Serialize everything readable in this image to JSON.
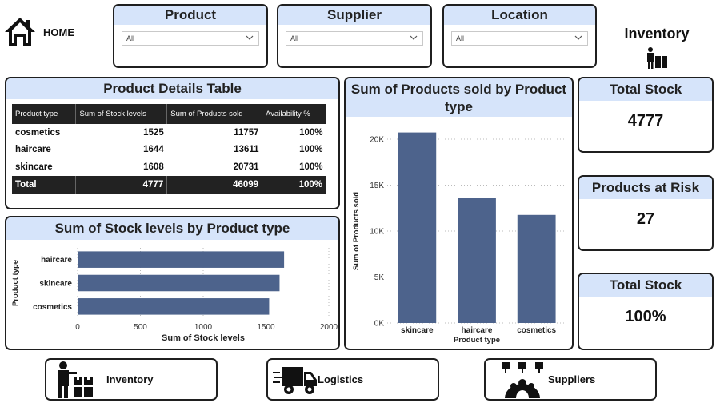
{
  "home": {
    "label": "HOME",
    "icon": "home-icon"
  },
  "slicers": [
    {
      "title": "Product",
      "value": "All"
    },
    {
      "title": "Supplier",
      "value": "All"
    },
    {
      "title": "Location",
      "value": "All"
    }
  ],
  "page_title": "Inventory",
  "details_table": {
    "title": "Product Details Table",
    "columns": [
      "Product type",
      "Sum of Stock levels",
      "Sum of Products sold",
      "Availability %"
    ],
    "rows": [
      [
        "cosmetics",
        "1525",
        "11757",
        "100%"
      ],
      [
        "haircare",
        "1644",
        "13611",
        "100%"
      ],
      [
        "skincare",
        "1608",
        "20731",
        "100%"
      ]
    ],
    "total": [
      "Total",
      "4777",
      "46099",
      "100%"
    ]
  },
  "kpis": [
    {
      "title": "Total Stock",
      "value": "4777"
    },
    {
      "title": "Products at Risk",
      "value": "27"
    },
    {
      "title": "Total Stock",
      "value": "100%"
    }
  ],
  "chart_data": [
    {
      "type": "bar",
      "orientation": "horizontal",
      "title": "Sum of Stock levels by Product type",
      "xlabel": "Sum of Stock levels",
      "ylabel": "Product type",
      "categories": [
        "haircare",
        "skincare",
        "cosmetics"
      ],
      "values": [
        1644,
        1608,
        1525
      ],
      "xlim": [
        0,
        2000
      ],
      "xticks": [
        "0",
        "500",
        "1000",
        "1500",
        "2000"
      ],
      "grid": true,
      "color": "#4d638c"
    },
    {
      "type": "bar",
      "orientation": "vertical",
      "title": "Sum of Products sold by Product type",
      "xlabel": "Product type",
      "ylabel": "Sum of Products sold",
      "categories": [
        "skincare",
        "haircare",
        "cosmetics"
      ],
      "values": [
        20731,
        13611,
        11757
      ],
      "ylim": [
        0,
        20000
      ],
      "yticks": [
        "0K",
        "5K",
        "10K",
        "15K",
        "20K"
      ],
      "grid": true,
      "color": "#4d638c"
    }
  ],
  "nav_buttons": [
    {
      "label": "Inventory",
      "icon": "inventory-worker-icon"
    },
    {
      "label": "Logistics",
      "icon": "delivery-truck-icon"
    },
    {
      "label": "Suppliers",
      "icon": "supplier-network-icon"
    }
  ]
}
